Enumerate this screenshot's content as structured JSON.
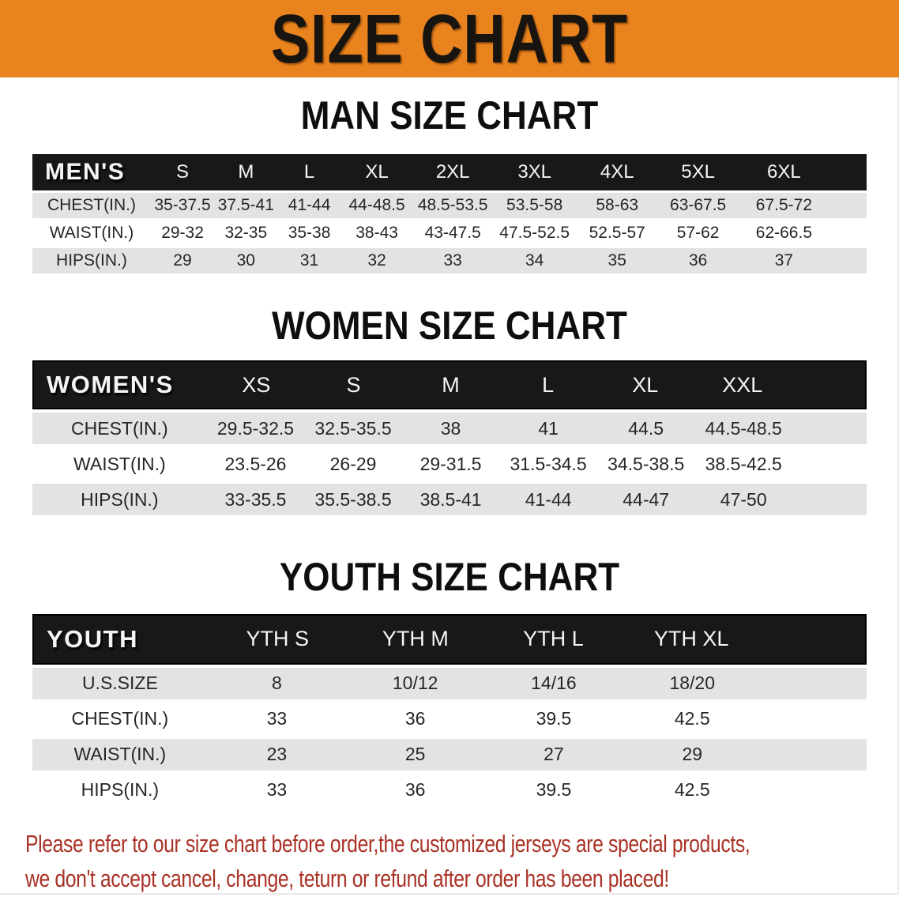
{
  "banner": {
    "title": "SIZE CHART"
  },
  "sections": [
    {
      "heading": "MAN SIZE CHART",
      "table": {
        "header": [
          "MEN'S",
          "S",
          "M",
          "L",
          "XL",
          "2XL",
          "3XL",
          "4XL",
          "5XL",
          "6XL"
        ],
        "rows": [
          [
            "CHEST(IN.)",
            "35-37.5",
            "37.5-41",
            "41-44",
            "44-48.5",
            "48.5-53.5",
            "53.5-58",
            "58-63",
            "63-67.5",
            "67.5-72"
          ],
          [
            "WAIST(IN.)",
            "29-32",
            "32-35",
            "35-38",
            "38-43",
            "43-47.5",
            "47.5-52.5",
            "52.5-57",
            "57-62",
            "62-66.5"
          ],
          [
            "HIPS(IN.)",
            "29",
            "30",
            "31",
            "32",
            "33",
            "34",
            "35",
            "36",
            "37"
          ]
        ]
      }
    },
    {
      "heading": "WOMEN SIZE CHART",
      "table": {
        "header": [
          "WOMEN'S",
          "XS",
          "S",
          "M",
          "L",
          "XL",
          "XXL"
        ],
        "rows": [
          [
            "CHEST(IN.)",
            "29.5-32.5",
            "32.5-35.5",
            "38",
            "41",
            "44.5",
            "44.5-48.5"
          ],
          [
            "WAIST(IN.)",
            "23.5-26",
            "26-29",
            "29-31.5",
            "31.5-34.5",
            "34.5-38.5",
            "38.5-42.5"
          ],
          [
            "HIPS(IN.)",
            "33-35.5",
            "35.5-38.5",
            "38.5-41",
            "41-44",
            "44-47",
            "47-50"
          ]
        ]
      }
    },
    {
      "heading": "YOUTH SIZE CHART",
      "table": {
        "header": [
          "YOUTH",
          "YTH S",
          "YTH M",
          "YTH L",
          "YTH XL"
        ],
        "rows": [
          [
            "U.S.SIZE",
            "8",
            "10/12",
            "14/16",
            "18/20"
          ],
          [
            "CHEST(IN.)",
            "33",
            "36",
            "39.5",
            "42.5"
          ],
          [
            "WAIST(IN.)",
            "23",
            "25",
            "27",
            "29"
          ],
          [
            "HIPS(IN.)",
            "33",
            "36",
            "39.5",
            "42.5"
          ]
        ]
      }
    }
  ],
  "footer": {
    "line1": "Please refer to our size chart before order,the customized jerseys are special products,",
    "line2": "we don't accept cancel, change, teturn or refund after order has been placed!"
  },
  "colors": {
    "banner_bg": "#E8831E",
    "header_bar": "#181818",
    "row_stripe": "#E3E3E3",
    "footer_red": "#A93226"
  }
}
